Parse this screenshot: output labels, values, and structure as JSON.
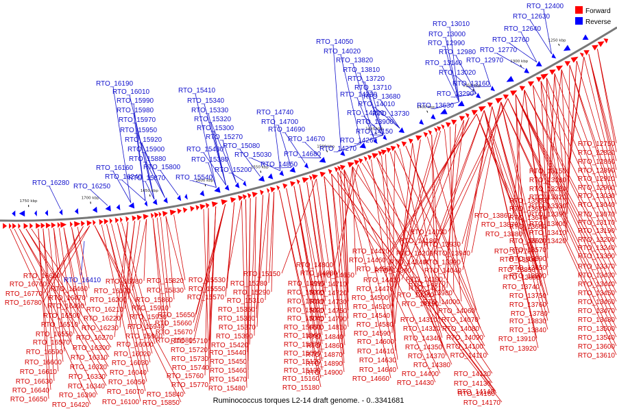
{
  "caption": "Ruminococcus torques L2-14 draft genome. - 0..3341681",
  "legend": [
    {
      "label": "Forward",
      "color": "#ff0000"
    },
    {
      "label": "Reverse",
      "color": "#0000ff"
    }
  ],
  "colors": {
    "forward": "#ff0000",
    "reverse": "#0000ff",
    "forward_label": "#d40000",
    "reverse_label": "#1010cc",
    "backbone": "#777777"
  },
  "ticks": [
    "1250 kbp",
    "1300 kbp",
    "1350 kbp",
    "1400 kbp",
    "1450 kbp",
    "1500 kbp",
    "1550 kbp",
    "1600 kbp",
    "1650 kbp",
    "1700 kbp",
    "1750 kbp"
  ],
  "reverse_labels": [
    "RTO_12400",
    "RTO_12630",
    "RTO_12640",
    "RTO_12760",
    "RTO_12770",
    "RTO_12970",
    "RTO_13010",
    "RTO_13000",
    "RTO_12990",
    "RTO_12980",
    "RTO_13140",
    "RTO_13020",
    "RTO_13160",
    "RTO_13290",
    "RTO_13630",
    "RTO_14050",
    "RTO_14020",
    "RTO_13820",
    "RTO_13810",
    "RTO_13720",
    "RTO_13710",
    "RTO_13680",
    "RTO_14230",
    "RTO_14010",
    "RTO_14220",
    "RTO_13730",
    "RTO_13900",
    "RTO_14150",
    "RTO_14260",
    "RTO_14270",
    "RTO_14740",
    "RTO_14700",
    "RTO_14690",
    "RTO_14670",
    "RTO_14680",
    "RTO_14850",
    "RTO_15410",
    "RTO_15340",
    "RTO_15330",
    "RTO_15320",
    "RTO_15300",
    "RTO_15270",
    "RTO_15080",
    "RTO_15430",
    "RTO_15030",
    "RTO_15380",
    "RTO_15200",
    "RTO_15540",
    "RTO_16190",
    "RTO_16010",
    "RTO_15990",
    "RTO_15980",
    "RTO_15970",
    "RTO_15950",
    "RTO_15920",
    "RTO_15900",
    "RTO_15880",
    "RTO_15800",
    "RTO_16160",
    "RTO_16240",
    "RTO_15870",
    "RTO_16250",
    "RTO_16280",
    "RTO_16410"
  ],
  "forward_labels_right": [
    "RTO_12750",
    "RTO_12820",
    "RTO_12860",
    "RTO_12890",
    "RTO_12910",
    "RTO_12960",
    "RTO_13150",
    "RTO_13180",
    "RTO_13280",
    "RTO_13030",
    "RTO_13320",
    "RTO_13040",
    "RTO_13330",
    "RTO_13070",
    "RTO_13580",
    "RTO_13390",
    "RTO_13170",
    "RTO_13620",
    "RTO_13400",
    "RTO_13190",
    "RTO_13640",
    "RTO_13410",
    "RTO_13200",
    "RTO_13660",
    "RTO_13420",
    "RTO_13240",
    "RTO_13670",
    "RTO_13570",
    "RTO_13350",
    "RTO_13590",
    "RTO_13370",
    "RTO_13650",
    "RTO_13690",
    "RTO_13430",
    "RTO_13440",
    "RTO_13450",
    "RTO_13460",
    "RTO_13470",
    "RTO_13480",
    "RTO_13500",
    "RTO_13540",
    "RTO_13600",
    "RTO_13610",
    "RTO_13740",
    "RTO_13750",
    "RTO_13760",
    "RTO_13780",
    "RTO_13830",
    "RTO_13840",
    "RTO_13910",
    "RTO_13920",
    "RTO_13770",
    "RTO_13800",
    "RTO_13850",
    "RTO_13890"
  ],
  "forward_labels_center": [
    "RTO_13860",
    "RTO_13870",
    "RTO_13880",
    "RTO_14030",
    "RTO_14180",
    "RTO_13930",
    "RTO_13940",
    "RTO_13990",
    "RTO_14040",
    "RTO_14200",
    "RTO_14240",
    "RTO_14420",
    "RTO_14460",
    "RTO_14560",
    "RTO_14360",
    "RTO_14410",
    "RTO_14190",
    "RTO_14210",
    "RTO_13970",
    "RTO_13980",
    "RTO_14000",
    "RTO_14470",
    "RTO_14500",
    "RTO_14280",
    "RTO_14290",
    "RTO_14060",
    "RTO_14520",
    "RTO_14540",
    "RTO_14580",
    "RTO_14310",
    "RTO_14070",
    "RTO_14080",
    "RTO_14320",
    "RTO_14590",
    "RTO_14090",
    "RTO_14340",
    "RTO_14600",
    "RTO_14610",
    "RTO_14350",
    "RTO_14100",
    "RTO_14630",
    "RTO_14370",
    "RTO_14110",
    "RTO_14380",
    "RTO_14640",
    "RTO_14120",
    "RTO_14400",
    "RTO_14660",
    "RTO_14130",
    "RTO_14430",
    "RTO_14140",
    "RTO_14160",
    "RTO_14170"
  ],
  "forward_labels_mid": [
    "RTO_14800",
    "RTO_14880",
    "RTO_14650",
    "RTO_14710",
    "RTO_14720",
    "RTO_14730",
    "RTO_14750",
    "RTO_14790",
    "RTO_14810",
    "RTO_14840",
    "RTO_14860",
    "RTO_14870",
    "RTO_14890",
    "RTO_14900",
    "RTO_15150",
    "RTO_14990",
    "RTO_15000",
    "RTO_15010",
    "RTO_15020",
    "RTO_15040",
    "RTO_15050",
    "RTO_15060",
    "RTO_15070",
    "RTO_15090",
    "RTO_15120",
    "RTO_15130",
    "RTO_15160",
    "RTO_15180",
    "RTO_15280",
    "RTO_15290",
    "RTO_15310",
    "RTO_15350",
    "RTO_15360",
    "RTO_15370",
    "RTO_15390",
    "RTO_15420",
    "RTO_15440",
    "RTO_15450",
    "RTO_15460",
    "RTO_15470",
    "RTO_15480",
    "RTO_15530",
    "RTO_15550",
    "RTO_15570",
    "RTO_15650",
    "RTO_15660",
    "RTO_15670",
    "RTO_15680",
    "RTO_15710",
    "RTO_15720",
    "RTO_15730",
    "RTO_15740",
    "RTO_15760",
    "RTO_15770"
  ],
  "forward_labels_left": [
    "RTO_15820",
    "RTO_15830",
    "RTO_15860",
    "RTO_15910",
    "RTO_15930",
    "RTO_15940",
    "RTO_15960",
    "RTO_16080",
    "RTO_16170",
    "RTO_16200",
    "RTO_16210",
    "RTO_16220",
    "RTO_16230",
    "RTO_16270",
    "RTO_16000",
    "RTO_16020",
    "RTO_16030",
    "RTO_16040",
    "RTO_16050",
    "RTO_16070",
    "RTO_16100",
    "RTO_15840",
    "RTO_15850",
    "RTO_16660",
    "RTO_16760",
    "RTO_16770",
    "RTO_16780",
    "RTO_16460",
    "RTO_16470",
    "RTO_16490",
    "RTO_16500",
    "RTO_16510",
    "RTO_16550",
    "RTO_16570",
    "RTO_16590",
    "RTO_16600",
    "RTO_16610",
    "RTO_16630",
    "RTO_16640",
    "RTO_16650",
    "RTO_16300",
    "RTO_16310",
    "RTO_16320",
    "RTO_16330",
    "RTO_16340",
    "RTO_16390",
    "RTO_16420"
  ]
}
